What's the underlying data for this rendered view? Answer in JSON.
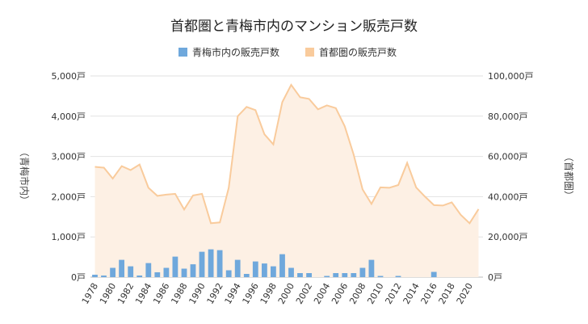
{
  "chart_data": {
    "type": "bar+area",
    "title": "首都圏と青梅市内のマンション販売戸数",
    "legend": {
      "position": "top",
      "items": [
        {
          "name": "青梅市内の販売戸数",
          "color": "#6fa8dc"
        },
        {
          "name": "首都圏の販売戸数",
          "color": "#f9cb9c"
        }
      ]
    },
    "left_axis": {
      "label": "（青梅市内）",
      "range": [
        0,
        5000
      ],
      "ticks": [
        "0戸",
        "1,000戸",
        "2,000戸",
        "3,000戸",
        "4,000戸",
        "5,000戸"
      ]
    },
    "right_axis": {
      "label": "（首都圏）",
      "range": [
        0,
        100000
      ],
      "ticks": [
        "0戸",
        "20,000戸",
        "40,000戸",
        "60,000戸",
        "80,000戸",
        "100,000戸"
      ]
    },
    "x_tick_labels": [
      "1978",
      "1980",
      "1982",
      "1984",
      "1986",
      "1988",
      "1990",
      "1992",
      "1994",
      "1996",
      "1998",
      "2000",
      "2002",
      "2004",
      "2006",
      "2008",
      "2010",
      "2012",
      "2014",
      "2016",
      "2018",
      "2020"
    ],
    "years": [
      1978,
      1979,
      1980,
      1981,
      1982,
      1983,
      1984,
      1985,
      1986,
      1987,
      1988,
      1989,
      1990,
      1991,
      1992,
      1993,
      1994,
      1995,
      1996,
      1997,
      1998,
      1999,
      2000,
      2001,
      2002,
      2003,
      2004,
      2005,
      2006,
      2007,
      2008,
      2009,
      2010,
      2011,
      2012,
      2013,
      2014,
      2015,
      2016,
      2017,
      2018,
      2019,
      2020,
      2021
    ],
    "series": [
      {
        "name": "青梅市内の販売戸数",
        "axis": "left",
        "type": "bar",
        "values": [
          60,
          40,
          230,
          430,
          270,
          40,
          350,
          120,
          230,
          510,
          210,
          320,
          630,
          690,
          670,
          170,
          430,
          80,
          390,
          340,
          270,
          570,
          230,
          100,
          100,
          0,
          30,
          100,
          100,
          100,
          230,
          430,
          30,
          0,
          30,
          0,
          0,
          0,
          130,
          0,
          0,
          0,
          0,
          0
        ]
      },
      {
        "name": "首都圏の販売戸数",
        "axis": "right",
        "type": "area",
        "values": [
          54800,
          54400,
          49000,
          55200,
          53200,
          56000,
          44400,
          40400,
          41000,
          41400,
          33600,
          40600,
          41400,
          26800,
          27200,
          44400,
          80000,
          84600,
          83000,
          71000,
          66000,
          87000,
          95600,
          89400,
          88600,
          83400,
          85400,
          84000,
          75000,
          61000,
          43600,
          36400,
          44600,
          44400,
          45800,
          56800,
          44600,
          40000,
          35800,
          35600,
          37200,
          31000,
          26800,
          33800
        ]
      }
    ]
  }
}
